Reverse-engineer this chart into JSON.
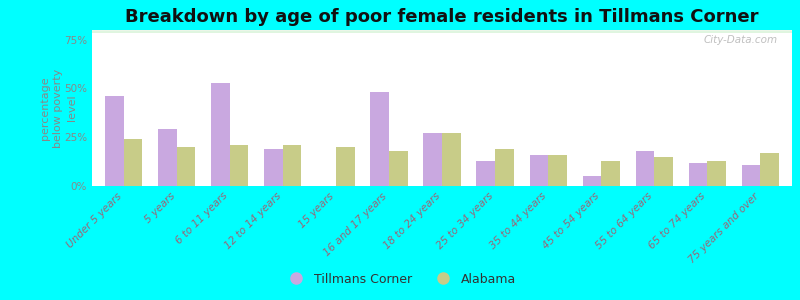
{
  "title": "Breakdown by age of poor female residents in Tillmans Corner",
  "categories": [
    "Under 5 years",
    "5 years",
    "6 to 11 years",
    "12 to 14 years",
    "15 years",
    "16 and 17 years",
    "18 to 24 years",
    "25 to 34 years",
    "35 to 44 years",
    "45 to 54 years",
    "55 to 64 years",
    "65 to 74 years",
    "75 years and over"
  ],
  "tillmans_values": [
    46,
    29,
    53,
    19,
    0,
    48,
    27,
    13,
    16,
    5,
    18,
    12,
    11
  ],
  "alabama_values": [
    24,
    20,
    21,
    21,
    20,
    18,
    27,
    19,
    16,
    13,
    15,
    13,
    17
  ],
  "tillmans_color": "#c9a8e0",
  "alabama_color": "#c8cc88",
  "ylabel": "percentage\nbelow poverty\nlevel",
  "yticks": [
    0,
    25,
    50,
    75
  ],
  "ytick_labels": [
    "0%",
    "25%",
    "50%",
    "75%"
  ],
  "ylim": [
    0,
    80
  ],
  "bg_color": "#00ffff",
  "watermark": "City-Data.com",
  "bar_width": 0.35,
  "title_fontsize": 13,
  "axis_label_fontsize": 8,
  "tick_fontsize": 7.5,
  "legend_fontsize": 9,
  "xtick_color": "#996677",
  "ytick_color": "#888888"
}
